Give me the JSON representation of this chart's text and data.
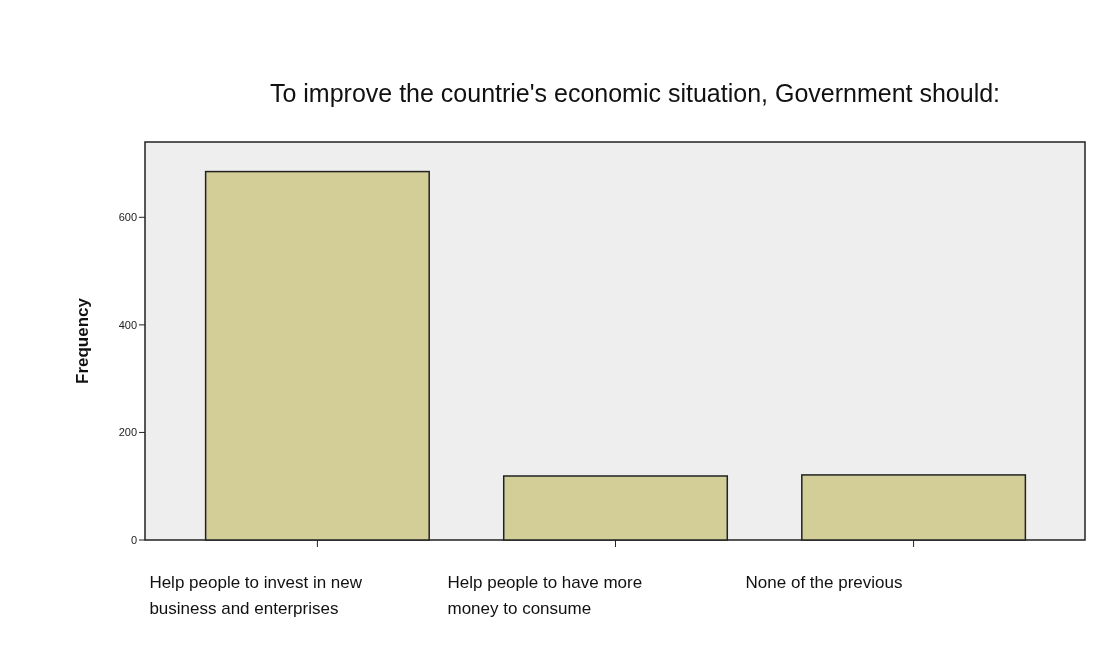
{
  "chart_data": {
    "type": "bar",
    "title": "To improve the countrie's economic situation, Government should:",
    "ylabel": "Frequency",
    "categories": [
      "Help people to invest in new business and enterprises",
      "Help people to have more money to consume",
      "None of the previous"
    ],
    "values": [
      685,
      119,
      121
    ],
    "color": "#d3ce98",
    "ylim": [
      0,
      740
    ],
    "yticks": [
      0,
      200,
      400,
      600
    ],
    "grid": false
  }
}
